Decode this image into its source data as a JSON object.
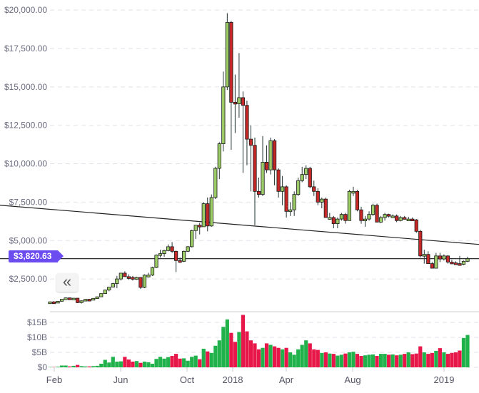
{
  "chart_data": [
    {
      "type": "candlestick",
      "title": "",
      "ylim": [
        0,
        20000
      ],
      "y_ticks": [
        "$20,000.00",
        "$17,500.00",
        "$15,000.00",
        "$12,500.00",
        "$10,000.00",
        "$7,500.00",
        "$5,000.00",
        "$2,500.00"
      ],
      "y_tick_values": [
        20000,
        17500,
        15000,
        12500,
        10000,
        7500,
        5000,
        2500
      ],
      "x_ticks": [
        "Feb",
        "Jun",
        "Oct",
        "2018",
        "Apr",
        "Aug",
        "2019"
      ],
      "grid": true,
      "current_price_label": "$3,820.63",
      "current_price": 3820.63,
      "trendline": {
        "start_price": 7300,
        "end_price": 4750
      },
      "ohlc": [
        [
          990,
          1040,
          980,
          1010
        ],
        [
          1010,
          1060,
          990,
          1000
        ],
        [
          1000,
          1060,
          990,
          1050
        ],
        [
          1050,
          1190,
          1040,
          1180
        ],
        [
          1180,
          1290,
          1150,
          1270
        ],
        [
          1270,
          1290,
          1130,
          1230
        ],
        [
          1230,
          1260,
          1180,
          1250
        ],
        [
          1250,
          1260,
          930,
          960
        ],
        [
          960,
          1100,
          900,
          1080
        ],
        [
          1080,
          1200,
          1060,
          1180
        ],
        [
          1180,
          1210,
          1150,
          1170
        ],
        [
          1170,
          1250,
          1150,
          1240
        ],
        [
          1240,
          1350,
          1220,
          1340
        ],
        [
          1340,
          1560,
          1330,
          1550
        ],
        [
          1550,
          1800,
          1540,
          1780
        ],
        [
          1780,
          1980,
          1700,
          1970
        ],
        [
          1970,
          2250,
          1950,
          2200
        ],
        [
          2200,
          2700,
          1900,
          2500
        ],
        [
          2500,
          2900,
          2400,
          2880
        ],
        [
          2880,
          3000,
          2700,
          2650
        ],
        [
          2650,
          2800,
          2450,
          2600
        ],
        [
          2600,
          2700,
          2400,
          2500
        ],
        [
          2500,
          2650,
          2450,
          2600
        ],
        [
          2600,
          2620,
          1850,
          1950
        ],
        [
          1950,
          2800,
          1900,
          2750
        ],
        [
          2750,
          2900,
          2600,
          2750
        ],
        [
          2750,
          3300,
          2700,
          3250
        ],
        [
          3250,
          4100,
          3200,
          4050
        ],
        [
          4050,
          4400,
          3900,
          4150
        ],
        [
          4150,
          4400,
          3950,
          4350
        ],
        [
          4350,
          4750,
          4300,
          4600
        ],
        [
          4600,
          4900,
          4200,
          4300
        ],
        [
          4300,
          4350,
          2950,
          3700
        ],
        [
          3700,
          3900,
          3550,
          3650
        ],
        [
          3650,
          4350,
          3600,
          4300
        ],
        [
          4300,
          4650,
          4250,
          4600
        ],
        [
          4600,
          5700,
          4550,
          5650
        ],
        [
          5650,
          6000,
          5100,
          6000
        ],
        [
          6000,
          6150,
          5400,
          5900
        ],
        [
          5900,
          7500,
          5900,
          7400
        ],
        [
          7400,
          7800,
          5600,
          5950
        ],
        [
          5950,
          8000,
          5900,
          7800
        ],
        [
          7800,
          9800,
          7700,
          9700
        ],
        [
          9700,
          11400,
          9000,
          11300
        ],
        [
          11300,
          16000,
          10800,
          15000
        ],
        [
          15000,
          19800,
          14800,
          19200
        ],
        [
          19200,
          19300,
          10900,
          14000
        ],
        [
          14000,
          15800,
          12000,
          13900
        ],
        [
          13900,
          17200,
          13000,
          14300
        ],
        [
          14300,
          14700,
          9400,
          13800
        ],
        [
          13800,
          14100,
          9900,
          11600
        ],
        [
          11600,
          12500,
          8200,
          11200
        ],
        [
          11200,
          11700,
          6000,
          8200
        ],
        [
          8200,
          9100,
          7800,
          8000
        ],
        [
          8000,
          11800,
          7900,
          10100
        ],
        [
          10100,
          11200,
          9400,
          9600
        ],
        [
          9600,
          11700,
          9300,
          11500
        ],
        [
          11500,
          11600,
          8600,
          9600
        ],
        [
          9600,
          9700,
          7800,
          8200
        ],
        [
          8200,
          9200,
          7300,
          8500
        ],
        [
          8500,
          8600,
          6500,
          6900
        ],
        [
          6900,
          7500,
          6600,
          7000
        ],
        [
          7000,
          8200,
          6600,
          8000
        ],
        [
          8000,
          9100,
          7900,
          8900
        ],
        [
          8900,
          9800,
          8800,
          9300
        ],
        [
          9300,
          9900,
          9000,
          9700
        ],
        [
          9700,
          9800,
          8400,
          8500
        ],
        [
          8500,
          8900,
          7900,
          8200
        ],
        [
          8200,
          8400,
          7300,
          7500
        ],
        [
          7500,
          7800,
          7100,
          7700
        ],
        [
          7700,
          7800,
          6500,
          6500
        ],
        [
          6500,
          6800,
          6400,
          6500
        ],
        [
          6500,
          6600,
          5800,
          6100
        ],
        [
          6100,
          6500,
          5800,
          6400
        ],
        [
          6400,
          6800,
          6300,
          6700
        ],
        [
          6700,
          6800,
          6100,
          6300
        ],
        [
          6300,
          8300,
          6300,
          8200
        ],
        [
          8200,
          8500,
          7900,
          8200
        ],
        [
          8200,
          8300,
          6900,
          7000
        ],
        [
          7000,
          7200,
          6100,
          6300
        ],
        [
          6300,
          6600,
          5900,
          6400
        ],
        [
          6400,
          6900,
          6300,
          6700
        ],
        [
          6700,
          7400,
          6600,
          7300
        ],
        [
          7300,
          7400,
          6200,
          6200
        ],
        [
          6200,
          6600,
          6150,
          6500
        ],
        [
          6500,
          6800,
          6300,
          6700
        ],
        [
          6700,
          6750,
          6500,
          6600
        ],
        [
          6600,
          6700,
          6500,
          6600
        ],
        [
          6600,
          6700,
          6200,
          6300
        ],
        [
          6300,
          6600,
          6250,
          6500
        ],
        [
          6500,
          6600,
          6400,
          6400
        ],
        [
          6400,
          6550,
          6350,
          6400
        ],
        [
          6400,
          6500,
          6300,
          6350
        ],
        [
          6350,
          6400,
          5500,
          5600
        ],
        [
          5600,
          5700,
          3900,
          4000
        ],
        [
          4000,
          4400,
          3500,
          4100
        ],
        [
          4100,
          4300,
          3500,
          3500
        ],
        [
          3500,
          3600,
          3200,
          3200
        ],
        [
          3200,
          4200,
          3200,
          4000
        ],
        [
          4000,
          4200,
          3600,
          3800
        ],
        [
          3800,
          4100,
          3700,
          4000
        ],
        [
          4000,
          4050,
          3500,
          3600
        ],
        [
          3600,
          3750,
          3500,
          3550
        ],
        [
          3550,
          3650,
          3450,
          3500
        ],
        [
          3500,
          4000,
          3400,
          3450
        ],
        [
          3450,
          3700,
          3400,
          3650
        ],
        [
          3650,
          3950,
          3600,
          3820.63
        ]
      ]
    },
    {
      "type": "bar",
      "ylabel": "",
      "ylim": [
        0,
        17
      ],
      "y_ticks": [
        "$15B",
        "$10B",
        "$5B",
        "$0"
      ],
      "y_tick_values": [
        15,
        10,
        5,
        0
      ],
      "unit": "$B",
      "values": [
        0.1,
        0.1,
        0.2,
        0.6,
        0.6,
        0.3,
        0.5,
        0.8,
        0.4,
        0.3,
        0.3,
        0.4,
        0.5,
        1.2,
        2.5,
        1.6,
        3.5,
        1.9,
        2.0,
        3.5,
        2.6,
        1.9,
        2.1,
        1.5,
        1.9,
        1.7,
        1.2,
        2.8,
        3.5,
        2.9,
        3.4,
        3.8,
        4.5,
        2.9,
        3.0,
        2.2,
        3.5,
        3.9,
        2.7,
        6.2,
        5.3,
        4.8,
        7.2,
        9.0,
        13.5,
        16.0,
        11.5,
        8.5,
        11.8,
        17.5,
        12.0,
        9.0,
        8.0,
        6.0,
        6.5,
        8.0,
        7.5,
        7.0,
        6.5,
        6.0,
        6.5,
        5.0,
        4.2,
        6.0,
        7.5,
        9.0,
        8.0,
        6.0,
        5.8,
        4.8,
        5.0,
        4.6,
        4.5,
        3.9,
        4.2,
        4.6,
        5.0,
        5.2,
        4.5,
        3.8,
        4.0,
        4.2,
        4.3,
        3.8,
        4.5,
        4.5,
        4.2,
        4.3,
        4.0,
        4.2,
        4.5,
        5.0,
        4.4,
        4.6,
        7.0,
        5.0,
        4.5,
        4.8,
        5.5,
        6.4,
        5.0,
        4.5,
        4.8,
        5.0,
        5.6,
        9.8,
        10.8
      ],
      "colors": {
        "up": "#22b24c",
        "down": "#e8174a"
      }
    }
  ],
  "colors": {
    "candle_up": "#9ccc65",
    "candle_down": "#c62828",
    "badge": "#6a4cf0"
  },
  "controls": {
    "collapse_icon": "double-chevron-left-icon",
    "collapse_glyph": "«"
  }
}
